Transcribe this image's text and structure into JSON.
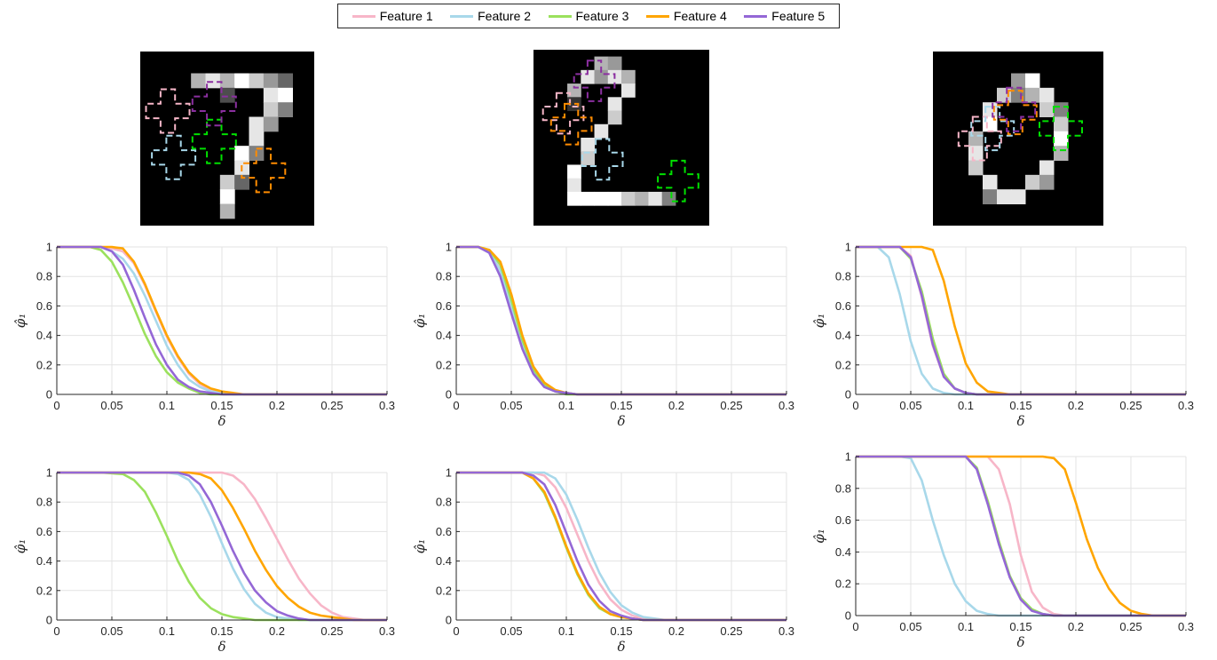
{
  "legend": {
    "items": [
      {
        "name": "Feature 1",
        "color": "#f7b6c8"
      },
      {
        "name": "Feature 2",
        "color": "#a8d8ea"
      },
      {
        "name": "Feature 3",
        "color": "#9be15d"
      },
      {
        "name": "Feature 4",
        "color": "#ffa500"
      },
      {
        "name": "Feature 5",
        "color": "#9467d6"
      }
    ]
  },
  "digits": [
    {
      "label": "digit-seven",
      "marker_colors": [
        "#f7b6c8",
        "#a8d8ea",
        "#00e000",
        "#ff8c00",
        "#8b2fa0"
      ]
    },
    {
      "label": "digit-two",
      "marker_colors": [
        "#f7b6c8",
        "#a8d8ea",
        "#00e000",
        "#ff8c00",
        "#8b2fa0"
      ]
    },
    {
      "label": "digit-zero",
      "marker_colors": [
        "#f7b6c8",
        "#a8d8ea",
        "#00e000",
        "#ff8c00",
        "#8b2fa0"
      ]
    }
  ],
  "chart_data": [
    {
      "type": "line",
      "xlabel": "δ",
      "ylabel": "φ̂₁",
      "xlim": [
        0,
        0.3
      ],
      "ylim": [
        0,
        1
      ],
      "grid": true,
      "xticks": [
        "0",
        "0.05",
        "0.1",
        "0.15",
        "0.2",
        "0.25",
        "0.3"
      ],
      "yticks": [
        "0",
        "0.2",
        "0.4",
        "0.6",
        "0.8",
        "1"
      ],
      "x": [
        0,
        0.01,
        0.02,
        0.03,
        0.04,
        0.05,
        0.06,
        0.07,
        0.08,
        0.09,
        0.1,
        0.11,
        0.12,
        0.13,
        0.14,
        0.15,
        0.16,
        0.17,
        0.18,
        0.19,
        0.2,
        0.25,
        0.3
      ],
      "series": [
        {
          "name": "Feature 1",
          "values": [
            1,
            1,
            1,
            1,
            1,
            0.99,
            0.97,
            0.89,
            0.74,
            0.56,
            0.39,
            0.25,
            0.14,
            0.07,
            0.03,
            0.01,
            0,
            0,
            0,
            0,
            0,
            0,
            0
          ]
        },
        {
          "name": "Feature 2",
          "values": [
            1,
            1,
            1,
            1,
            1,
            0.97,
            0.92,
            0.82,
            0.67,
            0.5,
            0.33,
            0.2,
            0.1,
            0.05,
            0.02,
            0.01,
            0,
            0,
            0,
            0,
            0,
            0,
            0
          ]
        },
        {
          "name": "Feature 3",
          "values": [
            1,
            1,
            1,
            1,
            0.98,
            0.9,
            0.76,
            0.59,
            0.41,
            0.26,
            0.15,
            0.08,
            0.04,
            0.01,
            0,
            0,
            0,
            0,
            0,
            0,
            0,
            0,
            0
          ]
        },
        {
          "name": "Feature 4",
          "values": [
            1,
            1,
            1,
            1,
            1,
            1,
            0.99,
            0.9,
            0.75,
            0.57,
            0.4,
            0.26,
            0.15,
            0.08,
            0.04,
            0.02,
            0.01,
            0,
            0,
            0,
            0,
            0,
            0
          ]
        },
        {
          "name": "Feature 5",
          "values": [
            1,
            1,
            1,
            1,
            1,
            0.97,
            0.88,
            0.71,
            0.52,
            0.34,
            0.2,
            0.1,
            0.05,
            0.02,
            0.01,
            0,
            0,
            0,
            0,
            0,
            0,
            0,
            0
          ]
        }
      ]
    },
    {
      "type": "line",
      "xlabel": "δ",
      "ylabel": "φ̂₁",
      "xlim": [
        0,
        0.3
      ],
      "ylim": [
        0,
        1
      ],
      "grid": true,
      "xticks": [
        "0",
        "0.05",
        "0.1",
        "0.15",
        "0.2",
        "0.25",
        "0.3"
      ],
      "yticks": [
        "0",
        "0.2",
        "0.4",
        "0.6",
        "0.8",
        "1"
      ],
      "x": [
        0,
        0.01,
        0.02,
        0.03,
        0.04,
        0.05,
        0.06,
        0.07,
        0.08,
        0.09,
        0.1,
        0.11,
        0.12,
        0.13,
        0.15,
        0.2,
        0.3
      ],
      "series": [
        {
          "name": "Feature 1",
          "values": [
            1,
            1,
            1,
            0.97,
            0.85,
            0.62,
            0.36,
            0.17,
            0.07,
            0.02,
            0.01,
            0,
            0,
            0,
            0,
            0,
            0
          ]
        },
        {
          "name": "Feature 2",
          "values": [
            1,
            1,
            1,
            0.97,
            0.84,
            0.6,
            0.35,
            0.16,
            0.06,
            0.02,
            0.01,
            0,
            0,
            0,
            0,
            0,
            0
          ]
        },
        {
          "name": "Feature 3",
          "values": [
            1,
            1,
            1,
            0.98,
            0.88,
            0.64,
            0.37,
            0.17,
            0.07,
            0.02,
            0,
            0,
            0,
            0,
            0,
            0,
            0
          ]
        },
        {
          "name": "Feature 4",
          "values": [
            1,
            1,
            1,
            0.98,
            0.9,
            0.68,
            0.4,
            0.19,
            0.08,
            0.03,
            0.01,
            0,
            0,
            0,
            0,
            0,
            0
          ]
        },
        {
          "name": "Feature 5",
          "values": [
            1,
            1,
            1,
            0.96,
            0.8,
            0.55,
            0.31,
            0.14,
            0.05,
            0.02,
            0.01,
            0,
            0,
            0,
            0,
            0,
            0
          ]
        }
      ]
    },
    {
      "type": "line",
      "xlabel": "δ",
      "ylabel": "φ̂₁",
      "xlim": [
        0,
        0.3
      ],
      "ylim": [
        0,
        1
      ],
      "grid": true,
      "xticks": [
        "0",
        "0.05",
        "0.1",
        "0.15",
        "0.2",
        "0.25",
        "0.3"
      ],
      "yticks": [
        "0",
        "0.2",
        "0.4",
        "0.6",
        "0.8",
        "1"
      ],
      "x": [
        0,
        0.01,
        0.02,
        0.03,
        0.04,
        0.05,
        0.06,
        0.07,
        0.08,
        0.09,
        0.1,
        0.11,
        0.12,
        0.13,
        0.14,
        0.15,
        0.2,
        0.25,
        0.3
      ],
      "series": [
        {
          "name": "Feature 1",
          "values": [
            1,
            1,
            1,
            1,
            1,
            0.94,
            0.66,
            0.33,
            0.12,
            0.04,
            0.01,
            0,
            0,
            0,
            0,
            0,
            0,
            0,
            0
          ]
        },
        {
          "name": "Feature 2",
          "values": [
            1,
            1,
            1,
            0.93,
            0.68,
            0.36,
            0.14,
            0.04,
            0.01,
            0,
            0,
            0,
            0,
            0,
            0,
            0,
            0,
            0,
            0
          ]
        },
        {
          "name": "Feature 3",
          "values": [
            1,
            1,
            1,
            1,
            1,
            0.92,
            0.7,
            0.38,
            0.14,
            0.04,
            0.01,
            0,
            0,
            0,
            0,
            0,
            0,
            0,
            0
          ]
        },
        {
          "name": "Feature 4",
          "values": [
            1,
            1,
            1,
            1,
            1,
            1,
            1,
            0.98,
            0.77,
            0.46,
            0.21,
            0.08,
            0.02,
            0.01,
            0,
            0,
            0,
            0,
            0
          ]
        },
        {
          "name": "Feature 5",
          "values": [
            1,
            1,
            1,
            1,
            1,
            0.93,
            0.67,
            0.34,
            0.12,
            0.04,
            0.01,
            0,
            0,
            0,
            0,
            0,
            0,
            0,
            0
          ]
        }
      ]
    },
    {
      "type": "line",
      "xlabel": "δ",
      "ylabel": "φ̂₁",
      "xlim": [
        0,
        0.3
      ],
      "ylim": [
        0,
        1
      ],
      "grid": true,
      "xticks": [
        "0",
        "0.05",
        "0.1",
        "0.15",
        "0.2",
        "0.25",
        "0.3"
      ],
      "yticks": [
        "0",
        "0.2",
        "0.4",
        "0.6",
        "0.8",
        "1"
      ],
      "x": [
        0,
        0.02,
        0.04,
        0.06,
        0.07,
        0.08,
        0.09,
        0.1,
        0.11,
        0.12,
        0.13,
        0.14,
        0.15,
        0.16,
        0.17,
        0.18,
        0.19,
        0.2,
        0.21,
        0.22,
        0.23,
        0.24,
        0.25,
        0.26,
        0.27,
        0.28,
        0.3
      ],
      "series": [
        {
          "name": "Feature 1",
          "values": [
            1,
            1,
            1,
            1,
            1,
            1,
            1,
            1,
            1,
            1,
            1,
            1,
            1,
            0.98,
            0.92,
            0.82,
            0.69,
            0.55,
            0.41,
            0.28,
            0.18,
            0.1,
            0.05,
            0.02,
            0.01,
            0,
            0
          ]
        },
        {
          "name": "Feature 2",
          "values": [
            1,
            1,
            1,
            1,
            1,
            1,
            1,
            1,
            0.99,
            0.95,
            0.85,
            0.7,
            0.52,
            0.35,
            0.21,
            0.11,
            0.05,
            0.02,
            0.01,
            0,
            0,
            0,
            0,
            0,
            0,
            0,
            0
          ]
        },
        {
          "name": "Feature 3",
          "values": [
            1,
            1,
            1,
            0.99,
            0.95,
            0.87,
            0.73,
            0.57,
            0.4,
            0.26,
            0.15,
            0.08,
            0.04,
            0.02,
            0.01,
            0,
            0,
            0,
            0,
            0,
            0,
            0,
            0,
            0,
            0,
            0,
            0
          ]
        },
        {
          "name": "Feature 4",
          "values": [
            1,
            1,
            1,
            1,
            1,
            1,
            1,
            1,
            1,
            1,
            0.99,
            0.96,
            0.88,
            0.76,
            0.62,
            0.47,
            0.34,
            0.23,
            0.15,
            0.09,
            0.05,
            0.03,
            0.02,
            0.01,
            0,
            0,
            0
          ]
        },
        {
          "name": "Feature 5",
          "values": [
            1,
            1,
            1,
            1,
            1,
            1,
            1,
            1,
            1,
            0.98,
            0.92,
            0.8,
            0.64,
            0.47,
            0.32,
            0.2,
            0.12,
            0.06,
            0.03,
            0.01,
            0,
            0,
            0,
            0,
            0,
            0,
            0
          ]
        }
      ]
    },
    {
      "type": "line",
      "xlabel": "δ",
      "ylabel": "φ̂₁",
      "xlim": [
        0,
        0.3
      ],
      "ylim": [
        0,
        1
      ],
      "grid": true,
      "xticks": [
        "0",
        "0.05",
        "0.1",
        "0.15",
        "0.2",
        "0.25",
        "0.3"
      ],
      "yticks": [
        "0",
        "0.2",
        "0.4",
        "0.6",
        "0.8",
        "1"
      ],
      "x": [
        0,
        0.02,
        0.04,
        0.06,
        0.07,
        0.08,
        0.09,
        0.1,
        0.11,
        0.12,
        0.13,
        0.14,
        0.15,
        0.16,
        0.17,
        0.18,
        0.19,
        0.2,
        0.25,
        0.3
      ],
      "series": [
        {
          "name": "Feature 1",
          "values": [
            1,
            1,
            1,
            1,
            1,
            0.98,
            0.9,
            0.76,
            0.58,
            0.4,
            0.25,
            0.14,
            0.07,
            0.03,
            0.01,
            0,
            0,
            0,
            0,
            0
          ]
        },
        {
          "name": "Feature 2",
          "values": [
            1,
            1,
            1,
            1,
            1,
            1,
            0.96,
            0.85,
            0.68,
            0.49,
            0.32,
            0.19,
            0.1,
            0.05,
            0.02,
            0.01,
            0,
            0,
            0,
            0
          ]
        },
        {
          "name": "Feature 3",
          "values": [
            1,
            1,
            1,
            1,
            0.96,
            0.86,
            0.69,
            0.49,
            0.31,
            0.17,
            0.08,
            0.04,
            0.02,
            0.01,
            0,
            0,
            0,
            0,
            0,
            0
          ]
        },
        {
          "name": "Feature 4",
          "values": [
            1,
            1,
            1,
            1,
            0.96,
            0.87,
            0.7,
            0.5,
            0.32,
            0.18,
            0.09,
            0.04,
            0.02,
            0.01,
            0,
            0,
            0,
            0,
            0,
            0
          ]
        },
        {
          "name": "Feature 5",
          "values": [
            1,
            1,
            1,
            1,
            0.98,
            0.92,
            0.78,
            0.59,
            0.4,
            0.24,
            0.13,
            0.06,
            0.03,
            0.01,
            0,
            0,
            0,
            0,
            0,
            0
          ]
        }
      ]
    },
    {
      "type": "line",
      "xlabel": "δ",
      "ylabel": "φ̂₁",
      "xlim": [
        0,
        0.3
      ],
      "ylim": [
        0,
        1
      ],
      "grid": true,
      "xticks": [
        "0",
        "0.05",
        "0.1",
        "0.15",
        "0.2",
        "0.25",
        "0.3"
      ],
      "yticks": [
        "0",
        "0.2",
        "0.4",
        "0.6",
        "0.8",
        "1"
      ],
      "x": [
        0,
        0.02,
        0.04,
        0.05,
        0.06,
        0.07,
        0.08,
        0.09,
        0.1,
        0.11,
        0.12,
        0.13,
        0.14,
        0.15,
        0.16,
        0.17,
        0.18,
        0.19,
        0.2,
        0.21,
        0.22,
        0.23,
        0.24,
        0.25,
        0.26,
        0.27,
        0.28,
        0.3
      ],
      "series": [
        {
          "name": "Feature 1",
          "values": [
            1,
            1,
            1,
            1,
            1,
            1,
            1,
            1,
            1,
            1,
            1,
            0.92,
            0.7,
            0.38,
            0.15,
            0.05,
            0.01,
            0,
            0,
            0,
            0,
            0,
            0,
            0,
            0,
            0,
            0,
            0
          ]
        },
        {
          "name": "Feature 2",
          "values": [
            1,
            1,
            1,
            0.99,
            0.85,
            0.6,
            0.38,
            0.2,
            0.09,
            0.03,
            0.01,
            0,
            0,
            0,
            0,
            0,
            0,
            0,
            0,
            0,
            0,
            0,
            0,
            0,
            0,
            0,
            0,
            0
          ]
        },
        {
          "name": "Feature 3",
          "values": [
            1,
            1,
            1,
            1,
            1,
            1,
            1,
            1,
            1,
            0.93,
            0.72,
            0.47,
            0.25,
            0.11,
            0.04,
            0.01,
            0,
            0,
            0,
            0,
            0,
            0,
            0,
            0,
            0,
            0,
            0,
            0
          ]
        },
        {
          "name": "Feature 4",
          "values": [
            1,
            1,
            1,
            1,
            1,
            1,
            1,
            1,
            1,
            1,
            1,
            1,
            1,
            1,
            1,
            1,
            0.99,
            0.92,
            0.71,
            0.48,
            0.3,
            0.17,
            0.08,
            0.03,
            0.01,
            0,
            0,
            0
          ]
        },
        {
          "name": "Feature 5",
          "values": [
            1,
            1,
            1,
            1,
            1,
            1,
            1,
            1,
            1,
            0.92,
            0.7,
            0.45,
            0.24,
            0.1,
            0.03,
            0.01,
            0,
            0,
            0,
            0,
            0,
            0,
            0,
            0,
            0,
            0,
            0,
            0
          ]
        }
      ]
    }
  ]
}
